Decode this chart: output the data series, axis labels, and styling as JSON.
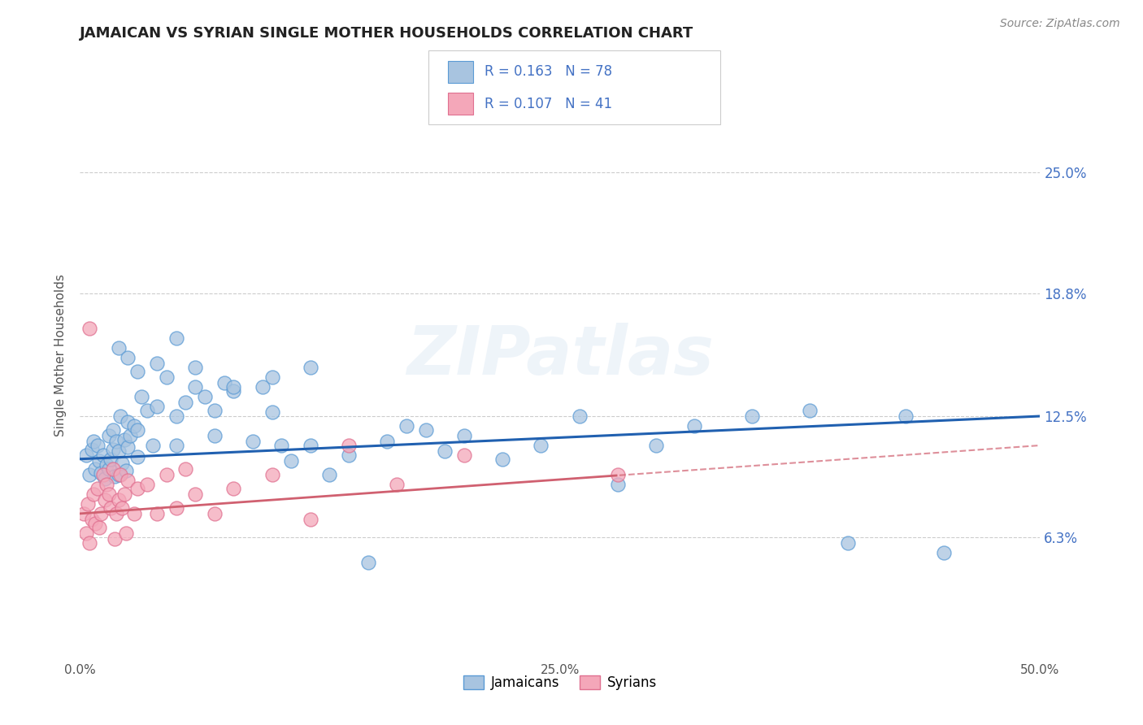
{
  "title": "JAMAICAN VS SYRIAN SINGLE MOTHER HOUSEHOLDS CORRELATION CHART",
  "source": "Source: ZipAtlas.com",
  "ylabel": "Single Mother Households",
  "xlim": [
    0.0,
    50.0
  ],
  "ylim": [
    0.0,
    31.25
  ],
  "xtick_vals": [
    0.0,
    12.5,
    25.0,
    37.5,
    50.0
  ],
  "xtick_labels": [
    "0.0%",
    "",
    "",
    "",
    "50.0%"
  ],
  "ytick_vals": [
    6.3,
    12.5,
    18.8,
    25.0
  ],
  "ytick_labels": [
    "6.3%",
    "12.5%",
    "18.8%",
    "25.0%"
  ],
  "jamaican_color": "#a8c4e0",
  "jamaican_edge": "#5b9bd5",
  "syrian_color": "#f4a7b9",
  "syrian_edge": "#e07090",
  "trend_jamaican_color": "#2060b0",
  "trend_syrian_color": "#d06070",
  "R_jamaican": 0.163,
  "N_jamaican": 78,
  "R_syrian": 0.107,
  "N_syrian": 41,
  "legend_label_jamaican": "Jamaicans",
  "legend_label_syrian": "Syrians",
  "watermark": "ZIPatlas",
  "title_color": "#222222",
  "source_color": "#888888",
  "ytick_color": "#4472c4",
  "xtick_color": "#555555",
  "ylabel_color": "#555555",
  "grid_color": "#cccccc"
}
